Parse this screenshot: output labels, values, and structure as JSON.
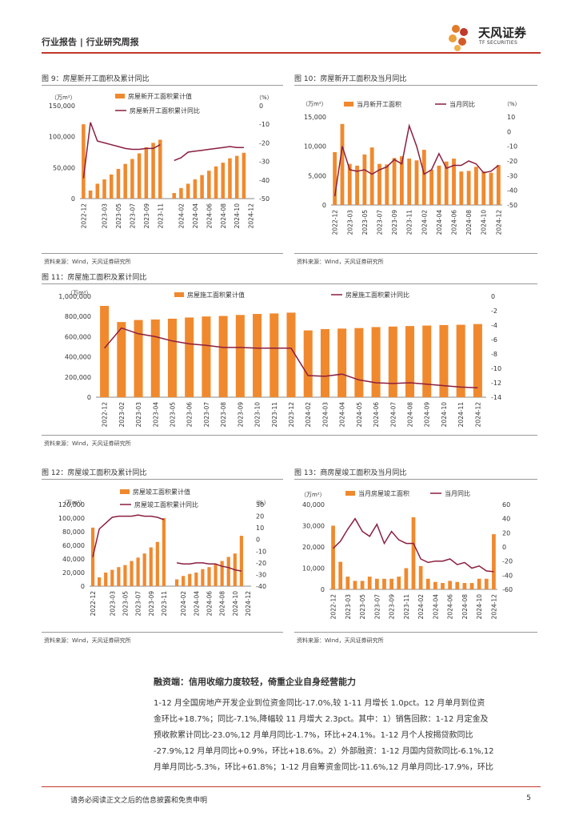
{
  "header": {
    "left": "行业报告 | 行业研究周报",
    "brand": "天风证券",
    "brand_sub": "TF SECURITIES"
  },
  "figures": {
    "fig9": {
      "title": "图 9：房屋新开工面积及累计同比",
      "source": "资料来源：Wind，天风证券研究所"
    },
    "fig10": {
      "title": "图 10：房屋新开工面积及当月同比",
      "source": "资料来源：Wind，天风证券研究所"
    },
    "fig11": {
      "title": "图 11：房屋施工面积及累计同比",
      "source": "资料来源：Wind，天风证券研究所"
    },
    "fig12": {
      "title": "图 12：房屋竣工面积及累计同比",
      "source": "资料来源：Wind，天风证券研究所"
    },
    "fig13": {
      "title": "图 13：商房屋竣工面积及当月同比",
      "source": "资料来源：Wind，天风证券研究所"
    }
  },
  "colors": {
    "bar": "#f0892e",
    "line": "#8b1e3f",
    "accent": "#c0392b"
  },
  "chart_data": [
    {
      "id": "fig9",
      "type": "bar+line",
      "unit_left": "（万m²）",
      "unit_right": "（%）",
      "legend": [
        "房屋新开工面积累计值",
        "房屋新开工面积累计同比"
      ],
      "categories": [
        "2022-12",
        "2023-01",
        "2023-02",
        "2023-03",
        "2023-04",
        "2023-05",
        "2023-06",
        "2023-07",
        "2023-08",
        "2023-09",
        "2023-10",
        "2023-11",
        "2023-12",
        "2024-01",
        "2024-02",
        "2024-03",
        "2024-04",
        "2024-05",
        "2024-06",
        "2024-07",
        "2024-08",
        "2024-09",
        "2024-10",
        "2024-11",
        "2024-12"
      ],
      "tick_labels": [
        "2022-12",
        "2023-03",
        "2023-05",
        "2023-07",
        "2023-09",
        "2023-11",
        "2024-02",
        "2024-04",
        "2024-06",
        "2024-08",
        "2024-10",
        "2024-12"
      ],
      "bars": [
        120000,
        13000,
        24000,
        31000,
        39000,
        48000,
        56000,
        64000,
        73000,
        83000,
        90000,
        95000,
        null,
        9000,
        17000,
        24000,
        31000,
        38000,
        45000,
        52000,
        58000,
        65000,
        69000,
        74000,
        null
      ],
      "line": [
        -39,
        -9,
        -19,
        -20,
        -21,
        -22,
        -23,
        -23.5,
        -23.5,
        -23,
        -23,
        -21,
        null,
        -29.5,
        -28,
        -25,
        -24.5,
        -24,
        -23.5,
        -23,
        -22.5,
        -22,
        -22.5,
        -22.5,
        null
      ],
      "ylim_left": [
        0,
        150000
      ],
      "yticks_left": [
        "0",
        "50,000",
        "100,000",
        "150,000"
      ],
      "ylim_right": [
        -50,
        0
      ],
      "yticks_right": [
        "0",
        "-10",
        "-20",
        "-30",
        "-40",
        "-50"
      ]
    },
    {
      "id": "fig10",
      "type": "bar+line",
      "unit_left": "（万m²）",
      "unit_right": "（%）",
      "legend": [
        "当月新开工面积",
        "当月同比"
      ],
      "categories": [
        "2022-12",
        "2023-02",
        "2023-03",
        "2023-04",
        "2023-05",
        "2023-06",
        "2023-07",
        "2023-08",
        "2023-09",
        "2023-10",
        "2023-11",
        "2023-12",
        "2024-02",
        "2024-03",
        "2024-04",
        "2024-05",
        "2024-06",
        "2024-07",
        "2024-08",
        "2024-09",
        "2024-10",
        "2024-11",
        "2024-12"
      ],
      "tick_labels": [
        "2022-12",
        "2023-03",
        "2023-05",
        "2023-07",
        "2023-09",
        "2023-11",
        "2024-02",
        "2024-04",
        "2024-06",
        "2024-08",
        "2024-10",
        "2024-12"
      ],
      "bars": [
        9000,
        13800,
        7000,
        6700,
        8600,
        9800,
        7000,
        6900,
        8000,
        8300,
        7900,
        7600,
        9400,
        6000,
        6700,
        7400,
        7900,
        5700,
        5800,
        6500,
        5700,
        5500,
        6800
      ],
      "line": [
        -44,
        -10,
        -26,
        -27,
        -26,
        -29,
        -26,
        -24,
        -19,
        -22,
        4,
        -10,
        -29,
        -26,
        -15,
        -25,
        -23,
        -23,
        -20,
        -22,
        -28,
        -27,
        -23
      ],
      "ylim_left": [
        0,
        15000
      ],
      "yticks_left": [
        "0",
        "5,000",
        "10,000",
        "15,000"
      ],
      "ylim_right": [
        -50,
        10
      ],
      "yticks_right": [
        "10",
        "0",
        "-10",
        "-20",
        "-30",
        "-40",
        "-50"
      ]
    },
    {
      "id": "fig11",
      "type": "bar+line",
      "unit_left": "（万m²）",
      "unit_right": "",
      "legend": [
        "房屋施工面积累计值",
        "房屋施工面积累计同比"
      ],
      "categories": [
        "2022-12",
        "2023-02",
        "2023-03",
        "2023-04",
        "2023-05",
        "2023-06",
        "2023-07",
        "2023-08",
        "2023-09",
        "2023-10",
        "2023-11",
        "2023-12",
        "2024-02",
        "2024-03",
        "2024-04",
        "2024-05",
        "2024-06",
        "2024-07",
        "2024-08",
        "2024-09",
        "2024-10",
        "2024-11",
        "2024-12"
      ],
      "tick_labels": [
        "2022-12",
        "2023-02",
        "2023-03",
        "2023-04",
        "2023-05",
        "2023-06",
        "2023-07",
        "2023-08",
        "2023-09",
        "2023-10",
        "2023-11",
        "2023-12",
        "2024-02",
        "2024-03",
        "2024-04",
        "2024-05",
        "2024-06",
        "2024-07",
        "2024-08",
        "2024-09",
        "2024-10",
        "2024-11",
        "2024-12"
      ],
      "bars": [
        905000,
        745000,
        765000,
        770000,
        778000,
        790000,
        800000,
        805000,
        815000,
        825000,
        830000,
        838000,
        662000,
        675000,
        680000,
        685000,
        695000,
        700000,
        705000,
        710000,
        715000,
        718000,
        725000
      ],
      "line": [
        -7.2,
        -4.4,
        -5.2,
        -5.6,
        -6.2,
        -6.6,
        -6.8,
        -7.1,
        -7.1,
        -7.2,
        -7.2,
        -7.2,
        -11,
        -11.1,
        -10.8,
        -11.6,
        -12,
        -12.1,
        -12,
        -12.2,
        -12.4,
        -12.6,
        -12.7
      ],
      "ylim_left": [
        0,
        1000000
      ],
      "yticks_left": [
        "0",
        "200,000",
        "400,000",
        "600,000",
        "800,000",
        "1,000,000"
      ],
      "ylim_right": [
        -14,
        0
      ],
      "yticks_right": [
        "0",
        "-2",
        "-4",
        "-6",
        "-8",
        "-10",
        "-12",
        "-14"
      ]
    },
    {
      "id": "fig12",
      "type": "bar+line",
      "unit_left": "（万m²）",
      "unit_right": "（%）",
      "legend": [
        "房屋竣工面积累计值",
        "房屋竣工面积累计同比"
      ],
      "categories": [
        "2022-12",
        "2023-01",
        "2023-02",
        "2023-03",
        "2023-04",
        "2023-05",
        "2023-06",
        "2023-07",
        "2023-08",
        "2023-09",
        "2023-10",
        "2023-11",
        "2023-12",
        "2024-01",
        "2024-02",
        "2024-03",
        "2024-04",
        "2024-05",
        "2024-06",
        "2024-07",
        "2024-08",
        "2024-09",
        "2024-10",
        "2024-11",
        "2024-12"
      ],
      "tick_labels": [
        "2022-12",
        "2023-03",
        "2023-05",
        "2023-07",
        "2023-09",
        "2023-11",
        "2024-02",
        "2024-04",
        "2024-06",
        "2024-08",
        "2024-10",
        "2024-12"
      ],
      "bars": [
        86000,
        13000,
        20000,
        24000,
        28000,
        31000,
        37000,
        42000,
        48000,
        57000,
        65000,
        100000,
        null,
        10000,
        15000,
        18000,
        20000,
        25000,
        28000,
        32000,
        37000,
        43000,
        48000,
        74000,
        null
      ],
      "line": [
        -15,
        9,
        14,
        19,
        20,
        20,
        20,
        21,
        20,
        20,
        19,
        17,
        null,
        -20,
        -21,
        -21,
        -20,
        -20,
        -21,
        -21,
        -23,
        -24,
        -26,
        -27,
        null
      ],
      "ylim_left": [
        0,
        120000
      ],
      "yticks_left": [
        "0",
        "20,000",
        "40,000",
        "60,000",
        "80,000",
        "100,000",
        "120,000"
      ],
      "ylim_right": [
        -40,
        30
      ],
      "yticks_right": [
        "30",
        "20",
        "10",
        "0",
        "-10",
        "-20",
        "-30",
        "-40"
      ]
    },
    {
      "id": "fig13",
      "type": "bar+line",
      "unit_left": "（万m²）",
      "unit_right": "",
      "legend": [
        "当月房屋竣工面积",
        "当月同比"
      ],
      "categories": [
        "2022-12",
        "2023-02",
        "2023-03",
        "2023-04",
        "2023-05",
        "2023-06",
        "2023-07",
        "2023-08",
        "2023-09",
        "2023-10",
        "2023-11",
        "2023-12",
        "2024-02",
        "2024-03",
        "2024-04",
        "2024-05",
        "2024-06",
        "2024-07",
        "2024-08",
        "2024-09",
        "2024-10",
        "2024-11",
        "2024-12"
      ],
      "tick_labels": [
        "2022-12",
        "2023-03",
        "2023-05",
        "2023-07",
        "2023-09",
        "2023-11",
        "2024-02",
        "2024-04",
        "2024-06",
        "2024-08",
        "2024-10",
        "2024-12"
      ],
      "bars": [
        30000,
        13000,
        6000,
        4000,
        4000,
        6000,
        5000,
        5000,
        5000,
        6000,
        10000,
        34000,
        11000,
        5000,
        3500,
        3000,
        4000,
        3500,
        3000,
        3000,
        5000,
        5000,
        26000
      ],
      "line": [
        -2,
        8,
        25,
        40,
        22,
        15,
        32,
        5,
        22,
        10,
        5,
        5,
        -17,
        -22,
        -20,
        -20,
        -17,
        -25,
        -22,
        -30,
        -27,
        -34,
        -35
      ],
      "ylim_left": [
        0,
        40000
      ],
      "yticks_left": [
        "0",
        "10,000",
        "20,000",
        "30,000",
        "40,000"
      ],
      "ylim_right": [
        -60,
        60
      ],
      "yticks_right": [
        "60",
        "40",
        "20",
        "0",
        "-20",
        "-40",
        "-60"
      ]
    }
  ],
  "section": {
    "title": "融资端：信用收缩力度较轻，倚重企业自身经营能力",
    "lines": [
      "1-12 月全国房地产开发企业到位资金同比-17.0%,较 1-11 月增长 1.0pct。12 月单月到位资",
      "金环比+18.7%；同比-7.1%,降幅较 11 月增大 2.3pct。其中：1）销售回款：1-12 月定金及",
      "预收款累计同比-23.0%,12 月单月同比-1.7%，环比+24.1%。1-12 月个人按揭贷款同比",
      "-27.9%,12 月单月同比+0.9%，环比+18.6%。2）外部融资：1-12 月国内贷款同比-6.1%,12",
      "月单月同比-5.3%，环比+61.8%；1-12 月自筹资金同比-11.6%,12 月单月同比-17.9%，环比"
    ]
  },
  "footer": {
    "disclaimer": "请务必阅读正文之后的信息披露和免责申明",
    "page": "5"
  }
}
